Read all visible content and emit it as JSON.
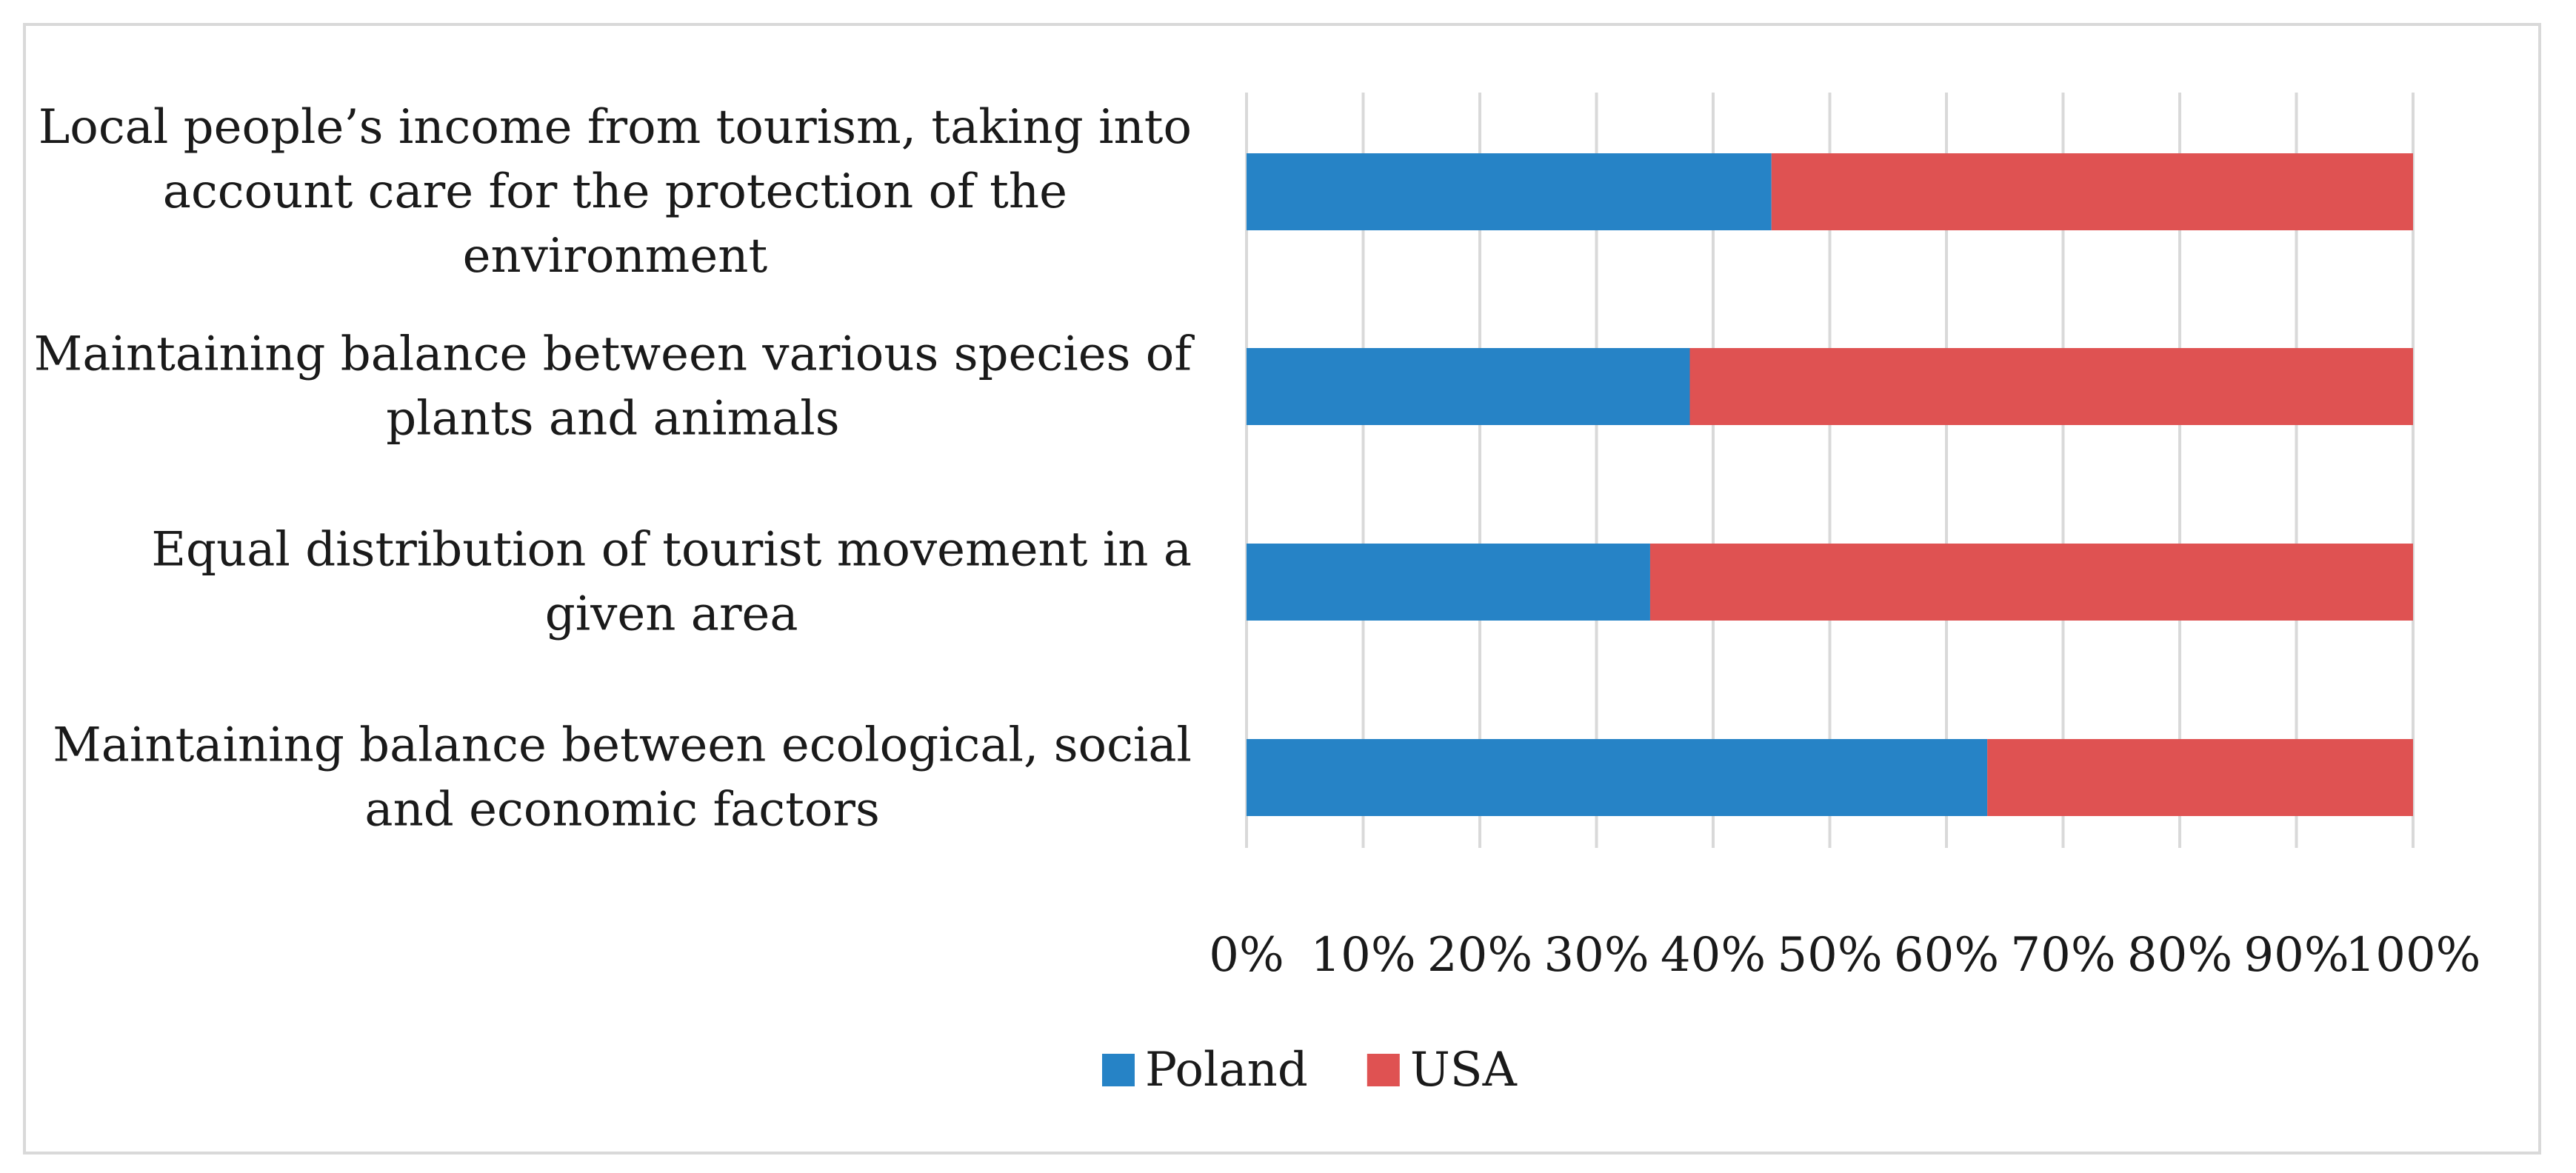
{
  "chart_data": {
    "type": "bar",
    "orientation": "horizontal",
    "stacked": true,
    "categories": [
      [
        "Local people’s income from tourism, taking into",
        "account care for the protection of the",
        "environment"
      ],
      [
        "Maintaining balance between various species of",
        "plants and animals"
      ],
      [
        "Equal distribution of tourist movement in a",
        "given area"
      ],
      [
        "Maintaining balance between ecological, social",
        "and economic factors"
      ]
    ],
    "series": [
      {
        "name": "Poland",
        "color": "#2683c6",
        "values": [
          45,
          38,
          34.6,
          63.5
        ]
      },
      {
        "name": "USA",
        "color": "#df5252",
        "values": [
          55,
          62,
          65.4,
          36.5
        ]
      }
    ],
    "x_ticks": [
      "0%",
      "10%",
      "20%",
      "30%",
      "40%",
      "50%",
      "60%",
      "70%",
      "80%",
      "90%",
      "100%"
    ],
    "xlim": [
      0,
      100
    ],
    "grid": true,
    "legend_position": "bottom"
  }
}
